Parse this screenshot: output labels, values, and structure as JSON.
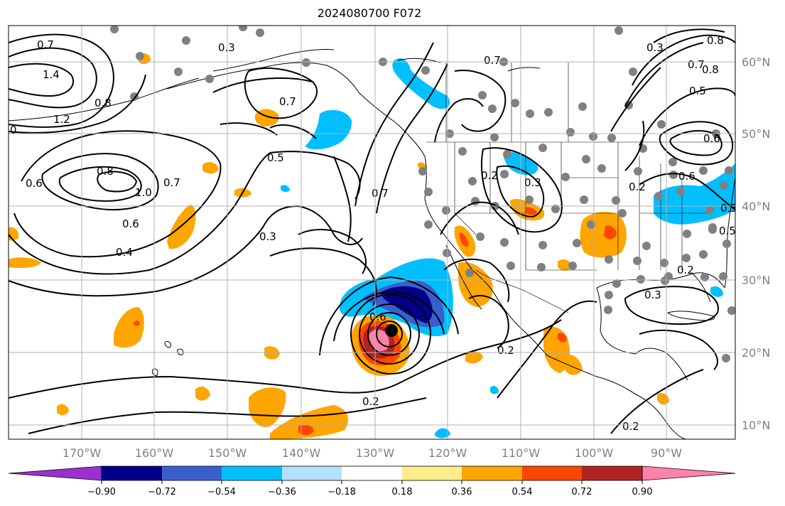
{
  "title": "2024080700 F072",
  "map": {
    "lat_labels": [
      "60°N",
      "50°N",
      "40°N",
      "30°N",
      "20°N",
      "10°N"
    ],
    "lon_labels": [
      "170°W",
      "160°W",
      "150°W",
      "140°W",
      "130°W",
      "120°W",
      "110°W",
      "100°W",
      "90°W"
    ],
    "contour_labels": [
      "0.7",
      "1.4",
      "1.2",
      "0.8",
      "0.6",
      "0",
      "0.3",
      "0.7",
      "0.5",
      "0.7",
      "0.6",
      "1.0",
      "0.7",
      "0.8",
      "0.6",
      "0.4",
      "0.3",
      "0.5",
      "0.7",
      "0.2",
      "0.2",
      "0.2",
      "0.3",
      "0.2",
      "0.2",
      "0.3",
      "0.2",
      "0.8",
      "0.6",
      "0.6",
      "0.7",
      "0.3",
      "0.8",
      "0.5",
      "0.5"
    ],
    "colors": {
      "purple": "#9b30d0",
      "navy": "#00008b",
      "blue": "#3a5fcd",
      "deepsky": "#00bfff",
      "lightblue": "#b0e2ff",
      "white": "#ffffff",
      "yellow": "#ffec8b",
      "orange": "#ffa500",
      "orangered": "#ff4500",
      "firebrick": "#b22222",
      "pink": "#ff82ab"
    }
  },
  "colorbar": {
    "ticks": [
      "−0.90",
      "−0.72",
      "−0.54",
      "−0.36",
      "−0.18",
      "0.18",
      "0.36",
      "0.54",
      "0.72",
      "0.90"
    ]
  }
}
